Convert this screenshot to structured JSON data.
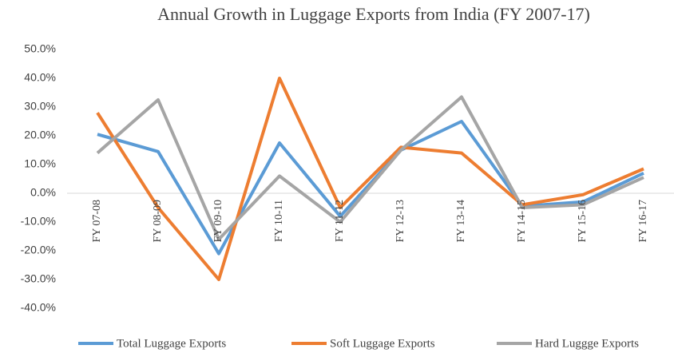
{
  "chart_data": {
    "type": "line",
    "title": "Annual Growth in Luggage Exports from India (FY 2007-17)",
    "categories": [
      "FY 07-08",
      "FY 08-09",
      "FY 09-10",
      "FY 10-11",
      "FY 11-12",
      "FY 12-13",
      "FY 13-14",
      "FY 14-15",
      "FY 15-16",
      "FY 16-17"
    ],
    "series": [
      {
        "name": "Total Luggage Exports",
        "color": "#5b9bd5",
        "values": [
          20.5,
          14.5,
          -21,
          17.5,
          -8,
          15,
          25,
          -4.5,
          -3,
          7
        ]
      },
      {
        "name": "Soft Luggage Exports",
        "color": "#ed7d31",
        "values": [
          28,
          -5,
          -30,
          40,
          -5,
          16,
          14,
          -4,
          -0.5,
          8.5
        ]
      },
      {
        "name": "Hard Luggge Exports",
        "color": "#a5a5a5",
        "values": [
          14,
          32.5,
          -16,
          6,
          -10,
          15,
          33.5,
          -5,
          -4,
          5.5
        ]
      }
    ],
    "ylim": [
      -40,
      50
    ],
    "yticks": [
      {
        "value": -40,
        "label": "-40.0%"
      },
      {
        "value": -30,
        "label": "-30.0%"
      },
      {
        "value": -20,
        "label": "-20.0%"
      },
      {
        "value": -10,
        "label": "-10.0%"
      },
      {
        "value": 0,
        "label": "0.0%"
      },
      {
        "value": 10,
        "label": "10.0%"
      },
      {
        "value": 20,
        "label": "20.0%"
      },
      {
        "value": 30,
        "label": "30.0%"
      },
      {
        "value": 40,
        "label": "40.0%"
      },
      {
        "value": 50,
        "label": "50.0%"
      }
    ],
    "grid": false,
    "legend": "bottom"
  }
}
